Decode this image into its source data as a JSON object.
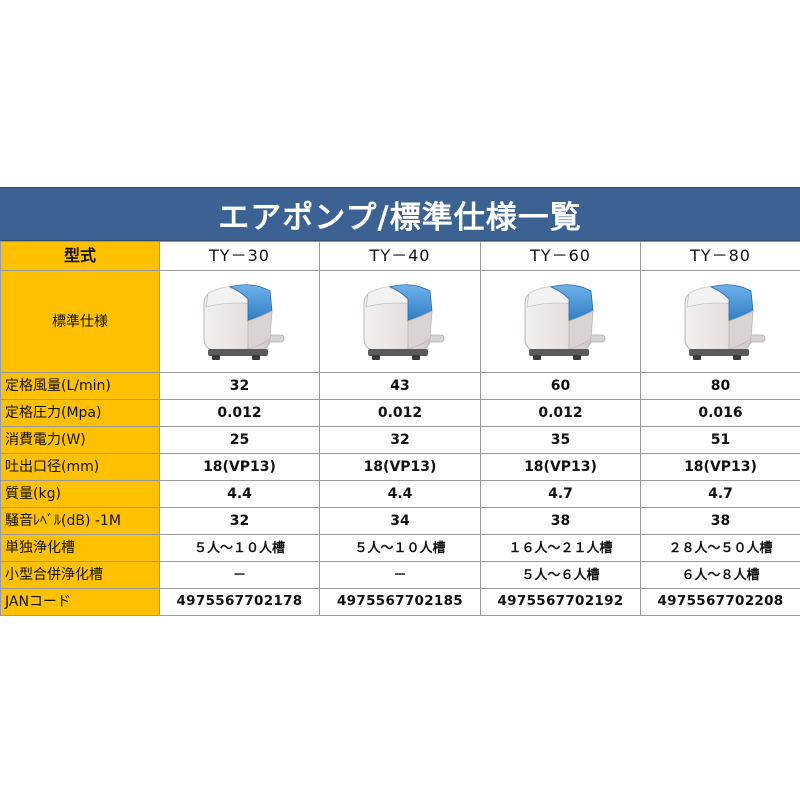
{
  "title": "エアポンプ/標準仕様一覧",
  "header": {
    "label": "型式",
    "models": [
      "TY－30",
      "TY－40",
      "TY－60",
      "TY－80"
    ]
  },
  "image_row_label": "標準仕様",
  "rows": [
    {
      "label": "定格風量(L/min)",
      "values": [
        "32",
        "43",
        "60",
        "80"
      ]
    },
    {
      "label": "定格圧力(Mpa)",
      "values": [
        "0.012",
        "0.012",
        "0.012",
        "0.016"
      ]
    },
    {
      "label": "消費電力(W)",
      "values": [
        "25",
        "32",
        "35",
        "51"
      ]
    },
    {
      "label": "吐出口径(mm)",
      "values": [
        "18(VP13)",
        "18(VP13)",
        "18(VP13)",
        "18(VP13)"
      ]
    },
    {
      "label": "質量(kg)",
      "values": [
        "4.4",
        "4.4",
        "4.7",
        "4.7"
      ]
    },
    {
      "label": "騒音ﾚﾍﾞﾙ(dB) -1M",
      "values": [
        "32",
        "34",
        "38",
        "38"
      ]
    },
    {
      "label": "単独浄化槽",
      "values": [
        "５人～１０人槽",
        "５人～１０人槽",
        "１６人～２１人槽",
        "２８人～５０人槽"
      ]
    },
    {
      "label": "小型合併浄化槽",
      "values": [
        "－",
        "－",
        "５人～６人槽",
        "６人～８人槽"
      ]
    },
    {
      "label": "JANコード",
      "values": [
        "4975567702178",
        "4975567702185",
        "4975567702192",
        "4975567702208"
      ]
    }
  ],
  "colors": {
    "title_bg": "#3b6292",
    "label_bg": "#ffc000",
    "pump_body": "#e9e4e2",
    "pump_cap": "#3f8fd2"
  }
}
